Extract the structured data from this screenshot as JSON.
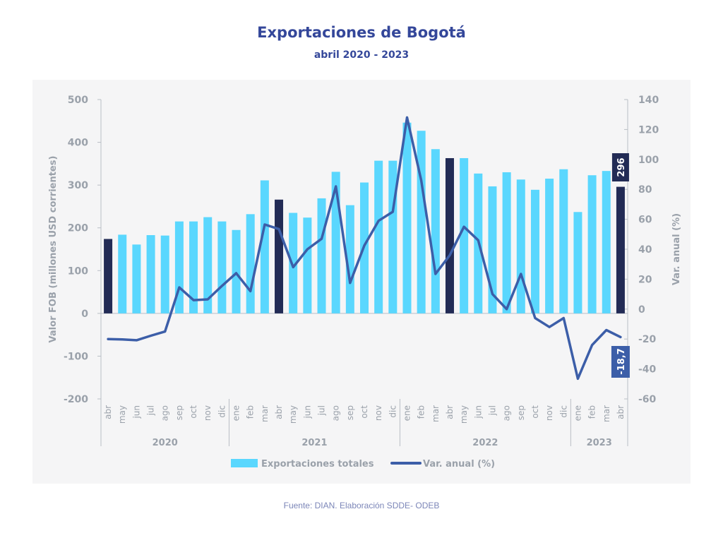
{
  "header": {
    "title": "Exportaciones de Bogotá",
    "subtitle": "abril 2020 - 2023"
  },
  "footer": {
    "source": "Fuente: DIAN. Elaboración SDDE- ODEB"
  },
  "colors": {
    "bar": "#5ad7fe",
    "bar_highlight": "#222b55",
    "line": "#3c5ea8",
    "axis_text": "#9aa1aa",
    "title": "#34479a"
  },
  "chart_data": {
    "type": "bar+line",
    "title": "Exportaciones de Bogotá",
    "subtitle": "abril 2020 - 2023",
    "ylabel_left": "Valor FOB (millones USD corrientes)",
    "ylabel_right": "Var. anual (%)",
    "ylim_left": [
      -200,
      500
    ],
    "ylim_right": [
      -60,
      140
    ],
    "yticks_left": [
      "500",
      "400",
      "300",
      "200",
      "100",
      "0",
      "-100",
      "-200"
    ],
    "yticks_right": [
      "140",
      "120",
      "100",
      "80",
      "60",
      "40",
      "20",
      "0",
      "-20",
      "-40",
      "-60"
    ],
    "years": [
      {
        "label": "2020",
        "count": 9
      },
      {
        "label": "2021",
        "count": 12
      },
      {
        "label": "2022",
        "count": 12
      },
      {
        "label": "2023",
        "count": 4
      }
    ],
    "categories": [
      "abr",
      "may",
      "jun",
      "jul",
      "ago",
      "sep",
      "oct",
      "nov",
      "dic",
      "ene",
      "feb",
      "mar",
      "abr",
      "may",
      "jun",
      "jul",
      "ago",
      "sep",
      "oct",
      "nov",
      "dic",
      "ene",
      "feb",
      "mar",
      "abr",
      "may",
      "jun",
      "jul",
      "ago",
      "sep",
      "oct",
      "nov",
      "dic",
      "ene",
      "feb",
      "mar",
      "abr"
    ],
    "highlight_indices": [
      0,
      12,
      24,
      36
    ],
    "series": [
      {
        "name": "Exportaciones totales",
        "type": "bar",
        "axis": "left",
        "values": [
          174,
          184,
          161,
          183,
          182,
          215,
          215,
          225,
          215,
          195,
          232,
          311,
          266,
          235,
          224,
          269,
          331,
          253,
          306,
          357,
          357,
          446,
          427,
          384,
          363,
          363,
          327,
          297,
          330,
          313,
          289,
          315,
          337,
          237,
          323,
          333,
          296
        ]
      },
      {
        "name": "Var. anual (%)",
        "type": "line",
        "axis": "right",
        "values": [
          -20,
          -20.3,
          -20.8,
          -17.8,
          -15,
          14.5,
          6,
          6.5,
          15.5,
          24,
          12,
          56.5,
          53.5,
          28,
          40,
          47,
          82,
          17.5,
          42.5,
          59,
          65,
          128,
          86,
          23.5,
          36,
          55,
          46,
          10,
          0,
          23.5,
          -6,
          -12,
          -6,
          -46.5,
          -24,
          -14,
          -18.7
        ]
      }
    ],
    "annotations": [
      {
        "series": "Exportaciones totales",
        "label": "296"
      },
      {
        "series": "Var. anual (%)",
        "label": "-18,7"
      }
    ],
    "legend": {
      "position": "bottom",
      "items": [
        "Exportaciones totales",
        "Var. anual (%)"
      ]
    },
    "grid": false
  }
}
